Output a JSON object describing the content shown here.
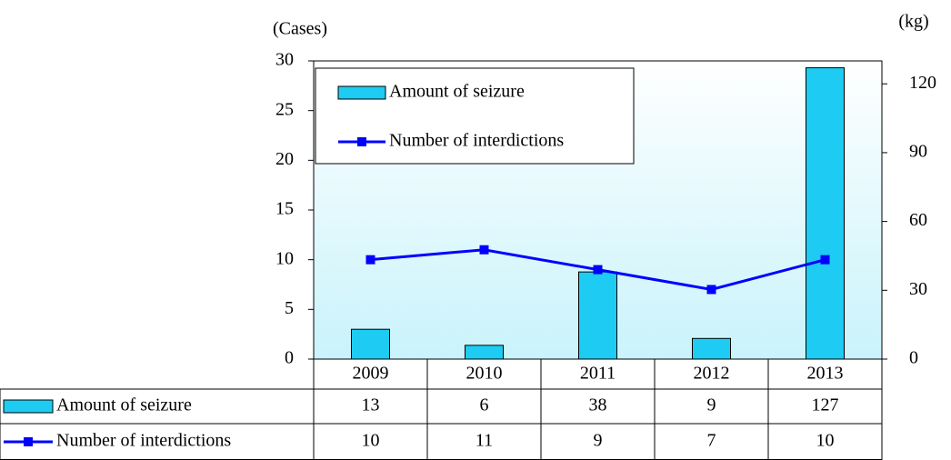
{
  "chart_data": {
    "type": "bar_line",
    "y_label": "(Cases)",
    "y2_label": "(kg)",
    "categories": [
      "2009",
      "2010",
      "2011",
      "2012",
      "2013"
    ],
    "series": [
      {
        "name": "Amount of seizure",
        "type": "bar",
        "axis": "y2",
        "color": "#1ecbf2",
        "values": [
          13,
          6,
          38,
          9,
          127
        ]
      },
      {
        "name": "Number of interdictions",
        "type": "line",
        "axis": "y",
        "color": "#0000ff",
        "values": [
          10,
          11,
          9,
          7,
          10
        ]
      }
    ],
    "ylim": [
      0,
      30
    ],
    "yticks": [
      0,
      5,
      10,
      15,
      20,
      25,
      30
    ],
    "y2lim": [
      0,
      130
    ],
    "y2ticks": [
      0,
      30,
      60,
      90,
      120
    ],
    "data_table": true
  }
}
